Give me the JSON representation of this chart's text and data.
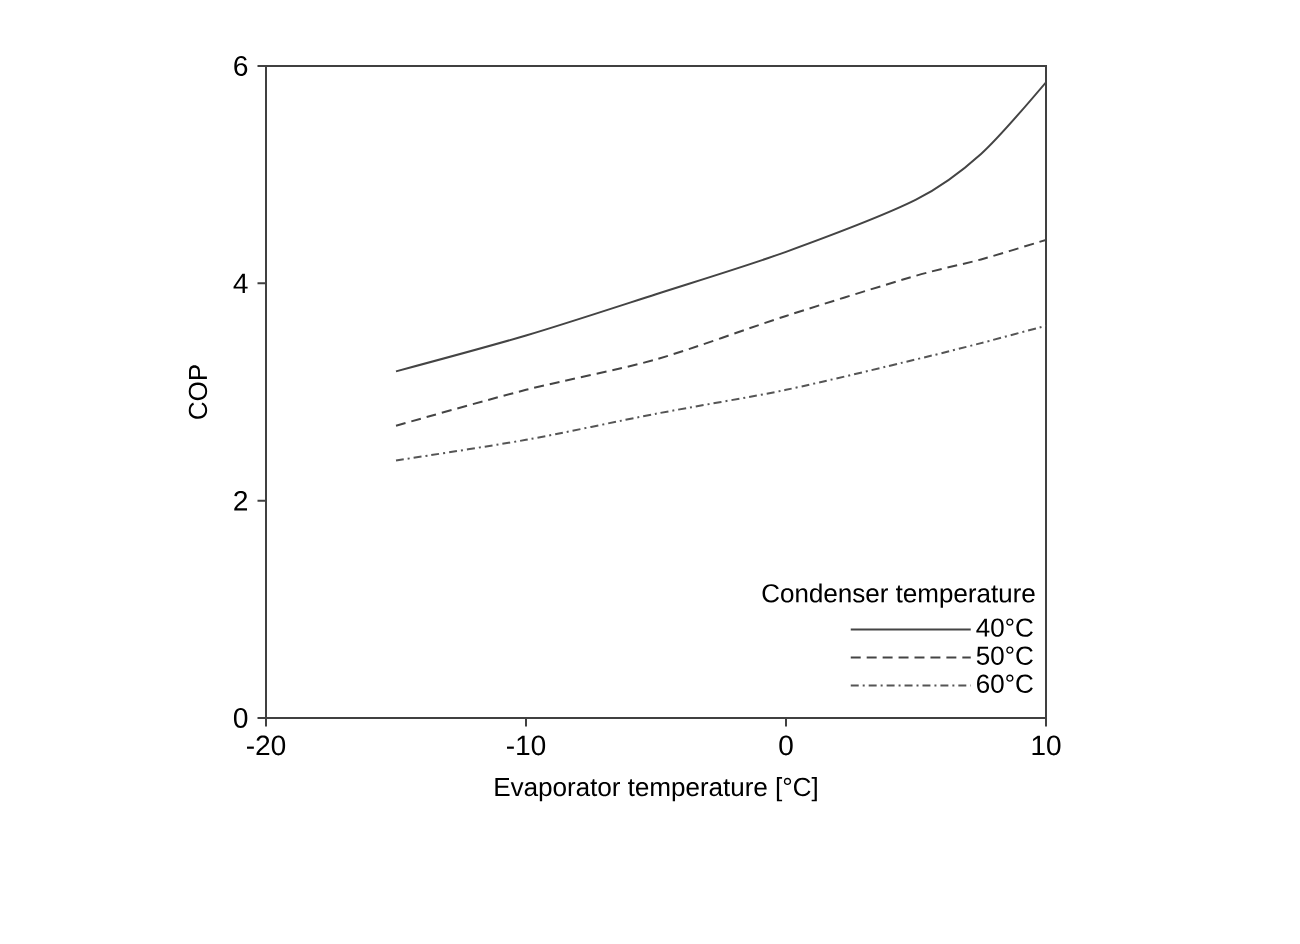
{
  "chart_data": {
    "type": "line",
    "xlabel": "Evaporator temperature [°C]",
    "ylabel": "COP",
    "legend_title": "Condenser temperature",
    "x": [
      -15,
      -10,
      -5,
      0,
      5,
      7.5,
      10
    ],
    "series": [
      {
        "name": "40°C",
        "color": "#444444",
        "line_style": "solid",
        "values": [
          3.19,
          3.52,
          3.9,
          4.29,
          4.77,
          5.19,
          5.85
        ]
      },
      {
        "name": "50°C",
        "color": "#444444",
        "line_style": "dashed",
        "values": [
          2.69,
          3.02,
          3.3,
          3.7,
          4.07,
          4.22,
          4.4
        ]
      },
      {
        "name": "60°C",
        "color": "#555555",
        "line_style": "dashdot",
        "values": [
          2.37,
          2.56,
          2.8,
          3.02,
          3.3,
          3.45,
          3.61
        ]
      }
    ],
    "xlim": [
      -20,
      10
    ],
    "ylim": [
      0,
      6
    ],
    "xticks": [
      -20,
      -10,
      0,
      10
    ],
    "yticks": [
      0,
      2,
      4,
      6
    ],
    "grid": false,
    "legend": "bottom right",
    "marker": "none"
  }
}
